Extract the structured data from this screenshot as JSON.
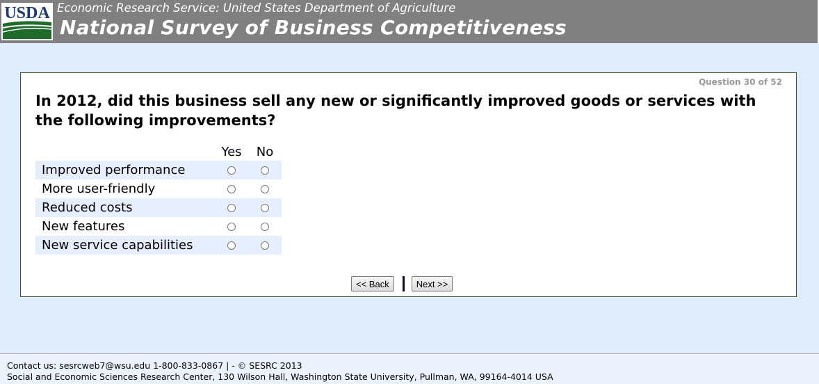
{
  "header": {
    "logo_text": "USDA",
    "agency": "Economic Research Service: United States Department of Agriculture",
    "title": "National Survey of Business Competitiveness"
  },
  "survey": {
    "progress": "Question 30 of 52",
    "question": "In 2012, did this business sell any new or significantly improved goods or services with the following improvements?",
    "columns": [
      "Yes",
      "No"
    ],
    "rows": [
      {
        "label": "Improved performance",
        "selected": null
      },
      {
        "label": "More user-friendly",
        "selected": null
      },
      {
        "label": "Reduced costs",
        "selected": null
      },
      {
        "label": "New features",
        "selected": null
      },
      {
        "label": "New service capabilities",
        "selected": null
      }
    ],
    "back_label": "<< Back",
    "next_label": "Next >>"
  },
  "footer": {
    "line1": "Contact us: sesrcweb7@wsu.edu 1-800-833-0867 | - © SESRC 2013",
    "line2": "Social and Economic Sciences Research Center, 130 Wilson Hall, Washington State University, Pullman, WA, 99164-4014 USA"
  }
}
